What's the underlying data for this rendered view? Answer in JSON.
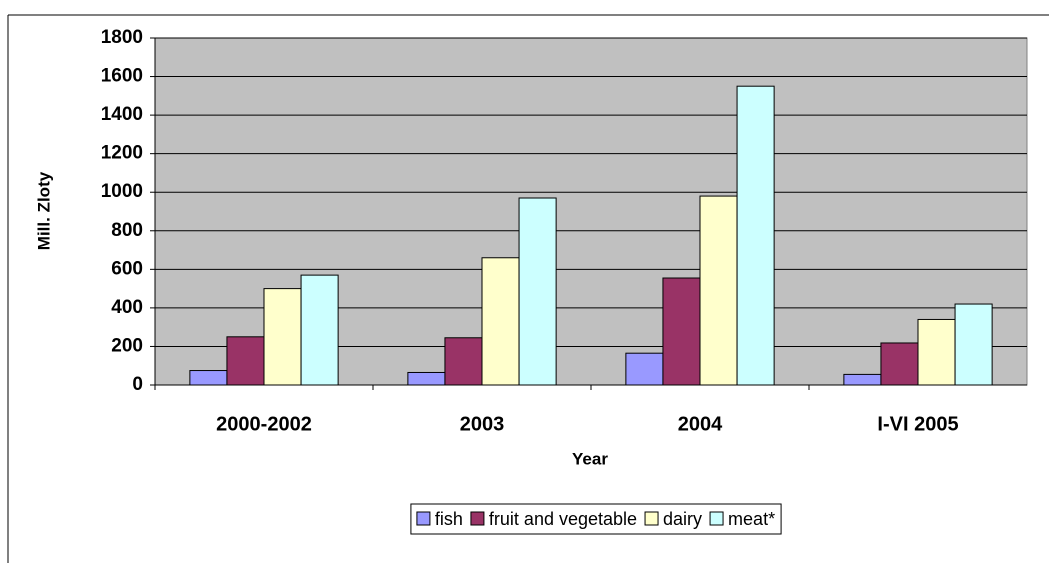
{
  "chart_data": {
    "type": "bar",
    "categories": [
      "2000-2002",
      "2003",
      "2004",
      "I-VI 2005"
    ],
    "series": [
      {
        "name": "fish",
        "color": "#9999ff",
        "values": [
          75,
          65,
          165,
          55
        ]
      },
      {
        "name": "fruit and vegetable",
        "color": "#993366",
        "values": [
          250,
          245,
          555,
          218
        ]
      },
      {
        "name": "dairy",
        "color": "#ffffcc",
        "values": [
          500,
          660,
          980,
          340
        ]
      },
      {
        "name": "meat*",
        "color": "#ccffff",
        "values": [
          570,
          970,
          1550,
          420
        ]
      }
    ],
    "x_label": "Year",
    "y_label": "Mill. Zloty",
    "ylim": [
      0,
      1800
    ],
    "yticks": [
      0,
      200,
      400,
      600,
      800,
      1000,
      1200,
      1400,
      1600,
      1800
    ],
    "grid": true,
    "legend": "bottom",
    "plot_background": "#c0c0c0"
  }
}
